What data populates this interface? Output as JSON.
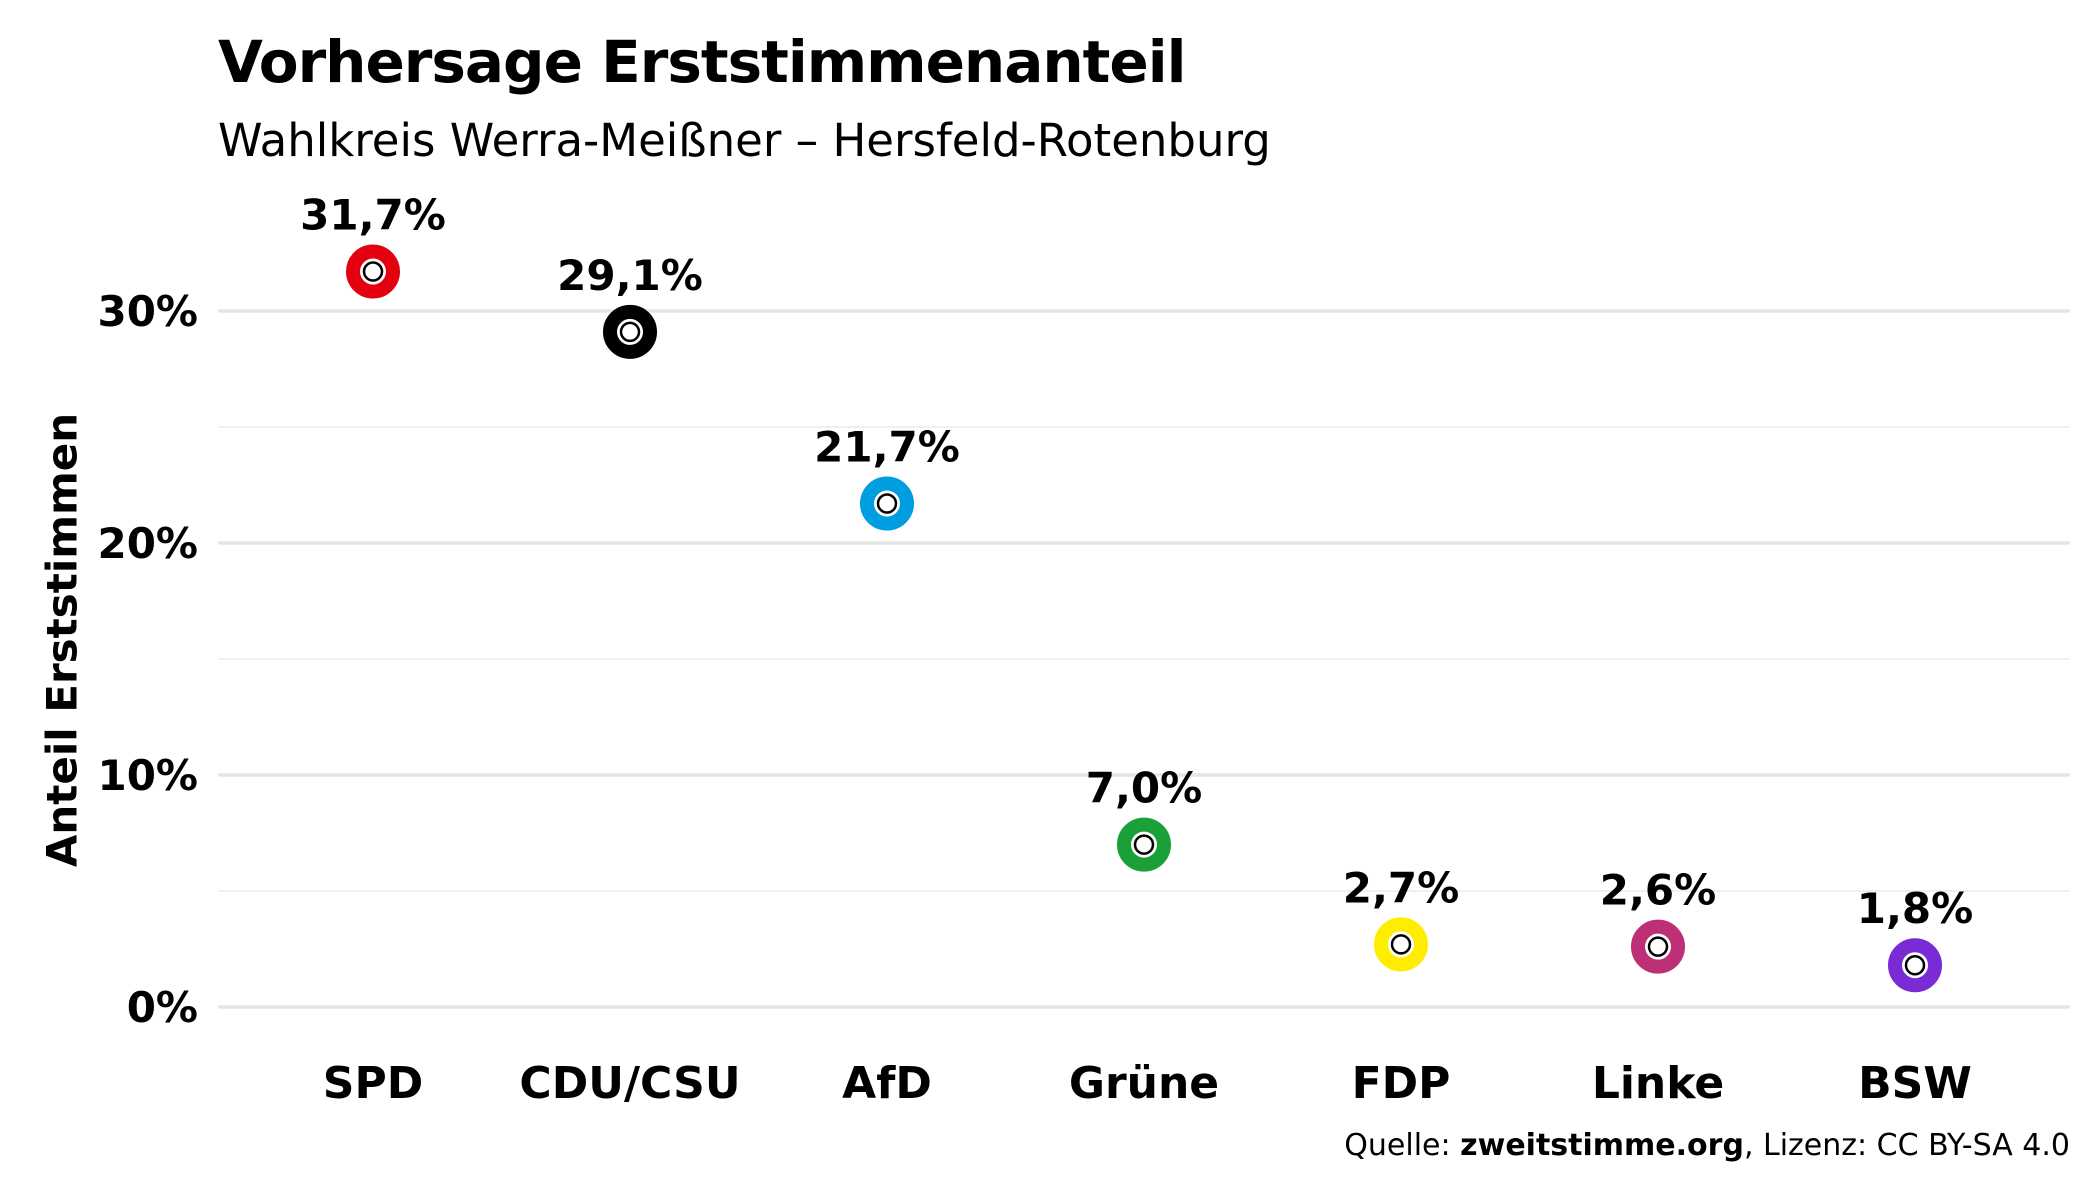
{
  "chart_data": {
    "type": "scatter",
    "title": "Vorhersage Erststimmenanteil",
    "subtitle": "Wahlkreis Werra-Meißner – Hersfeld-Rotenburg",
    "xlabel": "",
    "ylabel": "Anteil Erststimmen",
    "categories": [
      "SPD",
      "CDU/CSU",
      "AfD",
      "Grüne",
      "FDP",
      "Linke",
      "BSW"
    ],
    "values": [
      31.7,
      29.1,
      21.7,
      7.0,
      2.7,
      2.6,
      1.8
    ],
    "value_labels": [
      "31,7%",
      "29,1%",
      "21,7%",
      "7,0%",
      "2,7%",
      "2,6%",
      "1,8%"
    ],
    "colors": [
      "#e3000f",
      "#000000",
      "#009ee0",
      "#1aa037",
      "#ffed00",
      "#be3075",
      "#792bd6"
    ],
    "ylim": [
      0,
      34
    ],
    "yticks": [
      0,
      10,
      20,
      30
    ],
    "ytick_labels": [
      "0%",
      "10%",
      "20%",
      "30%"
    ],
    "grid": true,
    "legend": "none"
  },
  "caption": {
    "prefix": "Quelle: ",
    "source": "zweitstimme.org",
    "suffix": ", Lizenz: CC BY-SA 4.0"
  }
}
